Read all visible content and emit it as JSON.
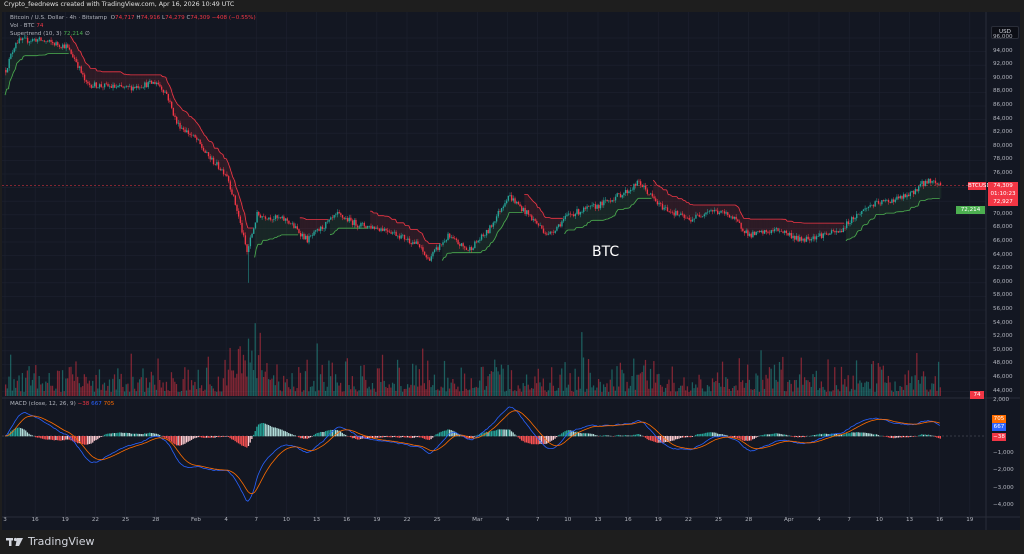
{
  "watermark_line": "Crypto_feednews created with TradingView.com, Apr 16, 2026 10:49 UTC",
  "legend": {
    "symbol": "Bitcoin / U.S. Dollar · 4h · Bitstamp",
    "o_label": "O",
    "o": "74,717",
    "h_label": "H",
    "h": "74,916",
    "l_label": "L",
    "l": "74,279",
    "c_label": "C",
    "c": "74,309",
    "change": "−408 (−0.55%)",
    "volume_label": "Vol · BTC",
    "volume": "74",
    "supertrend_label": "Supertrend (10, 3)",
    "supertrend": "72,214",
    "supertrend_extra": "∅",
    "macd_label": "MACD (close, 12, 26, 9)",
    "macd_hist": "−38",
    "macd": "667",
    "macd_signal": "705"
  },
  "price_axis": {
    "currency": "USD",
    "ticks": [
      "96,000",
      "94,000",
      "92,000",
      "90,000",
      "88,000",
      "86,000",
      "84,000",
      "82,000",
      "80,000",
      "78,000",
      "76,000",
      "70,000",
      "68,000",
      "66,000",
      "64,000",
      "62,000",
      "60,000",
      "58,000",
      "56,000",
      "54,000",
      "52,000",
      "50,000",
      "48,000",
      "46,000",
      "44,000"
    ],
    "symbol_tag": "BTCUSD",
    "last_price": "74,309",
    "countdown": "01:10:23",
    "red_tag": "72,927",
    "supertrend_tag": "72,214",
    "volume_tag": "74"
  },
  "macd_axis": {
    "ticks": [
      "2,000",
      "−1,000",
      "−2,000",
      "−3,000",
      "−4,000"
    ],
    "signal_tag": "705",
    "macd_tag": "667",
    "hist_tag": "−38"
  },
  "time_axis": [
    "3",
    "16",
    "19",
    "22",
    "25",
    "28",
    "Feb",
    "4",
    "7",
    "10",
    "13",
    "16",
    "19",
    "22",
    "25",
    "Mar",
    "4",
    "7",
    "10",
    "13",
    "16",
    "19",
    "22",
    "25",
    "28",
    "Apr",
    "4",
    "7",
    "10",
    "13",
    "16",
    "19"
  ],
  "annotation": "BTC",
  "footer": {
    "brand": "TradingView"
  },
  "colors": {
    "up": "#26a69a",
    "down": "#f23645",
    "supertrend_up": "#4caf50",
    "supertrend_down": "#f23645",
    "macd": "#2962ff",
    "signal": "#ff6d00",
    "background": "#131722"
  },
  "chart_data": {
    "type": "candlestick",
    "timeframe": "4h",
    "price_keypoints": [
      [
        "2026-01-13",
        91300
      ],
      [
        "2026-01-14",
        95500
      ],
      [
        "2026-01-16",
        95800
      ],
      [
        "2026-01-19",
        94800
      ],
      [
        "2026-01-20",
        92600
      ],
      [
        "2026-01-21",
        89200
      ],
      [
        "2026-01-25",
        88600
      ],
      [
        "2026-01-28",
        89500
      ],
      [
        "2026-01-29",
        87800
      ],
      [
        "2026-01-30",
        83500
      ],
      [
        "2026-02-01",
        81000
      ],
      [
        "2026-02-02",
        78800
      ],
      [
        "2026-02-03",
        77300
      ],
      [
        "2026-02-04",
        75900
      ],
      [
        "2026-02-05",
        70700
      ],
      [
        "2026-02-06",
        64500
      ],
      [
        "2026-02-07",
        70000
      ],
      [
        "2026-02-10",
        69200
      ],
      [
        "2026-02-12",
        66300
      ],
      [
        "2026-02-15",
        70000
      ],
      [
        "2026-02-17",
        68600
      ],
      [
        "2026-02-20",
        67800
      ],
      [
        "2026-02-23",
        65600
      ],
      [
        "2026-02-24",
        63400
      ],
      [
        "2026-02-26",
        66800
      ],
      [
        "2026-02-28",
        64800
      ],
      [
        "2026-03-02",
        67600
      ],
      [
        "2026-03-04",
        72900
      ],
      [
        "2026-03-06",
        70000
      ],
      [
        "2026-03-08",
        67000
      ],
      [
        "2026-03-10",
        70000
      ],
      [
        "2026-03-13",
        71400
      ],
      [
        "2026-03-16",
        73600
      ],
      [
        "2026-03-17",
        74800
      ],
      [
        "2026-03-19",
        71400
      ],
      [
        "2026-03-22",
        69200
      ],
      [
        "2026-03-24",
        70700
      ],
      [
        "2026-03-26",
        70000
      ],
      [
        "2026-03-28",
        67000
      ],
      [
        "2026-03-31",
        67800
      ],
      [
        "2026-04-02",
        66300
      ],
      [
        "2026-04-04",
        67000
      ],
      [
        "2026-04-06",
        67500
      ],
      [
        "2026-04-07",
        69200
      ],
      [
        "2026-04-09",
        71400
      ],
      [
        "2026-04-11",
        72100
      ],
      [
        "2026-04-13",
        72900
      ],
      [
        "2026-04-14",
        74400
      ],
      [
        "2026-04-15",
        75100
      ],
      [
        "2026-04-16",
        74309
      ]
    ],
    "spike_low": [
      "2026-02-06",
      60000
    ],
    "last": {
      "open": 74717,
      "high": 74916,
      "low": 74279,
      "close": 74309
    },
    "y_range": [
      44000,
      96000
    ],
    "macd_range": [
      -4000,
      2000
    ],
    "grid": true
  }
}
